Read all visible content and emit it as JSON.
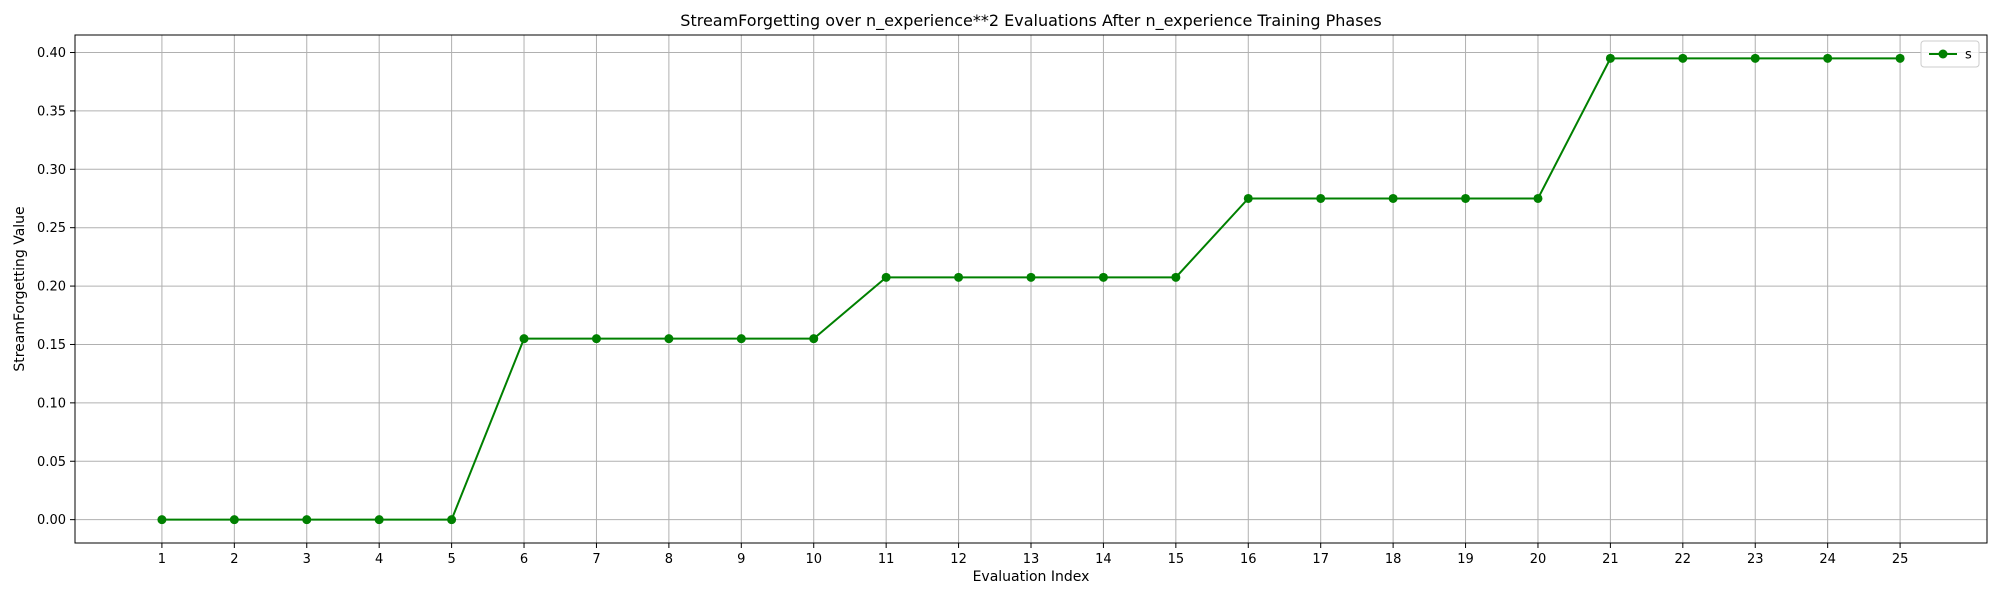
{
  "chart_data": {
    "type": "line",
    "title": "StreamForgetting over n_experience**2 Evaluations After n_experience Training Phases",
    "xlabel": "Evaluation Index",
    "ylabel": "StreamForgetting Value",
    "x": [
      1,
      2,
      3,
      4,
      5,
      6,
      7,
      8,
      9,
      10,
      11,
      12,
      13,
      14,
      15,
      16,
      17,
      18,
      19,
      20,
      21,
      22,
      23,
      24,
      25
    ],
    "xlim": [
      -0.2,
      26.2
    ],
    "ylim": [
      -0.02,
      0.415
    ],
    "yticks": [
      0.0,
      0.05,
      0.1,
      0.15,
      0.2,
      0.25,
      0.3,
      0.35,
      0.4
    ],
    "ytick_labels": [
      "0.00",
      "0.05",
      "0.10",
      "0.15",
      "0.20",
      "0.25",
      "0.30",
      "0.35",
      "0.40"
    ],
    "grid": true,
    "legend_position": "top-right",
    "series": [
      {
        "name": "s",
        "color": "#008000",
        "marker": "circle",
        "values": [
          0.0,
          0.0,
          0.0,
          0.0,
          0.0,
          0.155,
          0.155,
          0.155,
          0.155,
          0.155,
          0.2075,
          0.2075,
          0.2075,
          0.2075,
          0.2075,
          0.275,
          0.275,
          0.275,
          0.275,
          0.275,
          0.395,
          0.395,
          0.395,
          0.395,
          0.395
        ]
      }
    ]
  }
}
